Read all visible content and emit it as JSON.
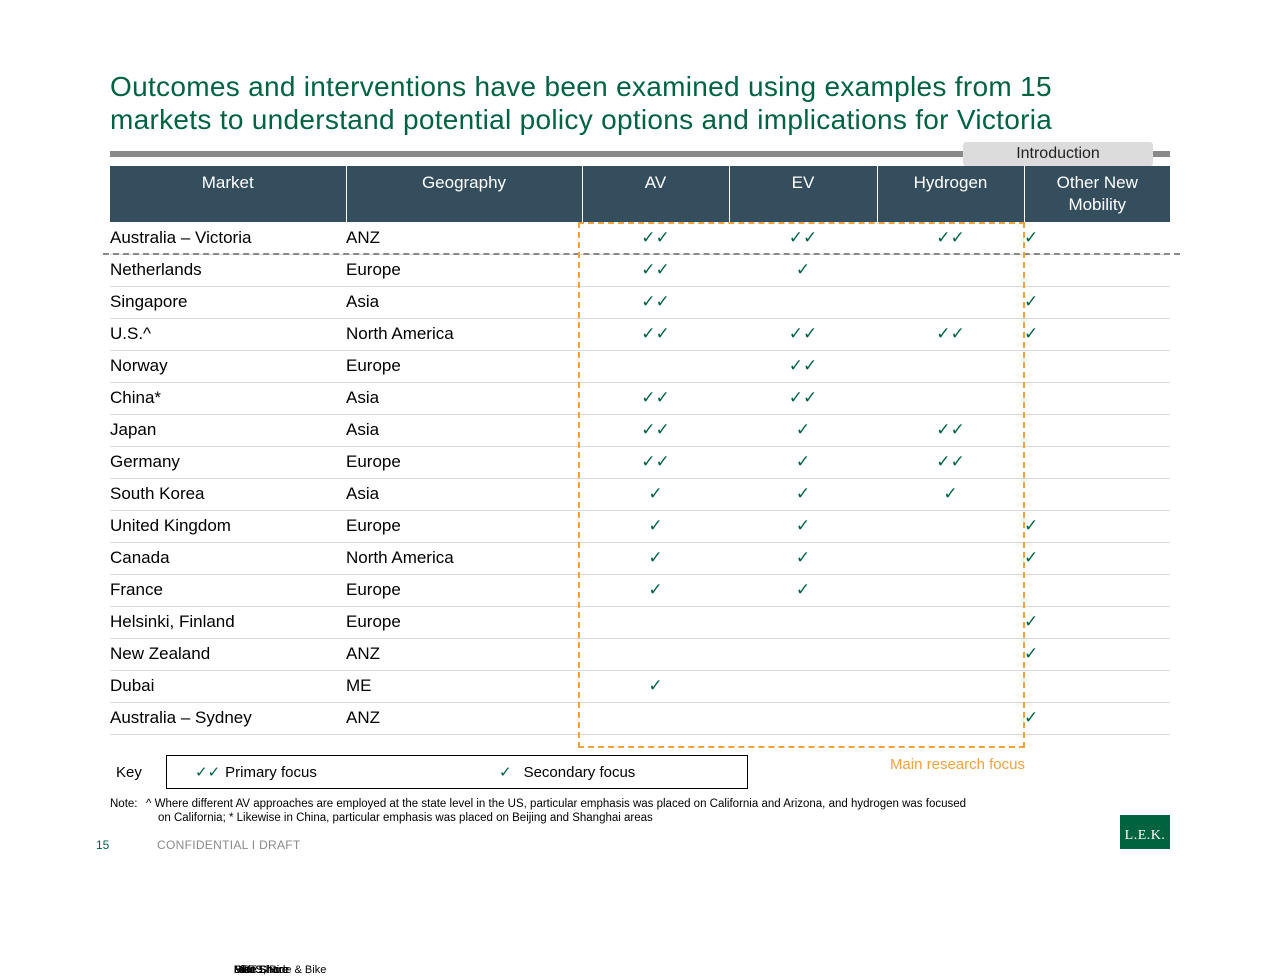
{
  "title": {
    "line1": "Outcomes and interventions have been examined using examples from 15",
    "line2": "markets to understand potential policy options and implications for Victoria"
  },
  "section_tab": "Introduction",
  "table": {
    "headers": [
      "Market",
      "Geography",
      "AV",
      "EV",
      "Hydrogen",
      "Other New Mobility"
    ],
    "rows": [
      {
        "market": "Australia – Victoria",
        "geography": "ANZ",
        "av": "✓✓",
        "ev": "✓✓",
        "hydrogen": "✓✓",
        "other": "✓",
        "other_note": ""
      },
      {
        "market": "Netherlands",
        "geography": "Europe",
        "av": "✓✓",
        "ev": "✓",
        "hydrogen": "",
        "other": "",
        "other_note": ""
      },
      {
        "market": "Singapore",
        "geography": "Asia",
        "av": "✓✓",
        "ev": "",
        "hydrogen": "",
        "other": "✓",
        "other_note": "Bike Share"
      },
      {
        "market": "U.S.^",
        "geography": "North America",
        "av": "✓✓",
        "ev": "✓✓",
        "hydrogen": "✓✓",
        "other": "✓",
        "other_note": "Ride Share"
      },
      {
        "market": "Norway",
        "geography": "Europe",
        "av": "",
        "ev": "✓✓",
        "hydrogen": "",
        "other": "",
        "other_note": ""
      },
      {
        "market": "China*",
        "geography": "Asia",
        "av": "✓✓",
        "ev": "✓✓",
        "hydrogen": "",
        "other": "",
        "other_note": ""
      },
      {
        "market": "Japan",
        "geography": "Asia",
        "av": "✓✓",
        "ev": "✓",
        "hydrogen": "✓✓",
        "other": "",
        "other_note": ""
      },
      {
        "market": "Germany",
        "geography": "Europe",
        "av": "✓✓",
        "ev": "✓",
        "hydrogen": "✓✓",
        "other": "",
        "other_note": ""
      },
      {
        "market": "South Korea",
        "geography": "Asia",
        "av": "✓",
        "ev": "✓",
        "hydrogen": "✓",
        "other": "",
        "other_note": ""
      },
      {
        "market": "United Kingdom",
        "geography": "Europe",
        "av": "✓",
        "ev": "✓",
        "hydrogen": "",
        "other": "✓",
        "other_note": "MaaS, Ride & Bike"
      },
      {
        "market": "Canada",
        "geography": "North America",
        "av": "✓",
        "ev": "✓",
        "hydrogen": "",
        "other": "✓",
        "other_note": "Ride Share"
      },
      {
        "market": "France",
        "geography": "Europe",
        "av": "✓",
        "ev": "✓",
        "hydrogen": "",
        "other": "",
        "other_note": ""
      },
      {
        "market": "Helsinki, Finland",
        "geography": "Europe",
        "av": "",
        "ev": "",
        "hydrogen": "",
        "other": "✓",
        "other_note": "MaaS"
      },
      {
        "market": "New Zealand",
        "geography": "ANZ",
        "av": "",
        "ev": "",
        "hydrogen": "",
        "other": "✓",
        "other_note": "MaaS"
      },
      {
        "market": "Dubai",
        "geography": "ME",
        "av": "✓",
        "ev": "",
        "hydrogen": "",
        "other": "",
        "other_note": ""
      },
      {
        "market": "Australia – Sydney",
        "geography": "ANZ",
        "av": "",
        "ev": "",
        "hydrogen": "",
        "other": "✓",
        "other_note": "DRT"
      }
    ]
  },
  "focus_label": "Main research focus",
  "key": {
    "label": "Key",
    "primary_glyph": "✓✓",
    "primary_label": "Primary focus",
    "secondary_glyph": "✓",
    "secondary_label": "Secondary focus"
  },
  "note": {
    "label": "Note:",
    "line1": "^ Where different AV approaches are employed at the state level in the US, particular emphasis was placed on California and Arizona, and hydrogen was focused",
    "line2": "on California; * Likewise in China, particular emphasis was placed on Beijing and Shanghai areas"
  },
  "footer": {
    "page_number": "15",
    "text": "CONFIDENTIAL  I  DRAFT",
    "logo": "L.E.K."
  },
  "colors": {
    "title_green": "#00633f",
    "header_bg": "#344e5e",
    "focus_orange": "#f0a33c"
  }
}
